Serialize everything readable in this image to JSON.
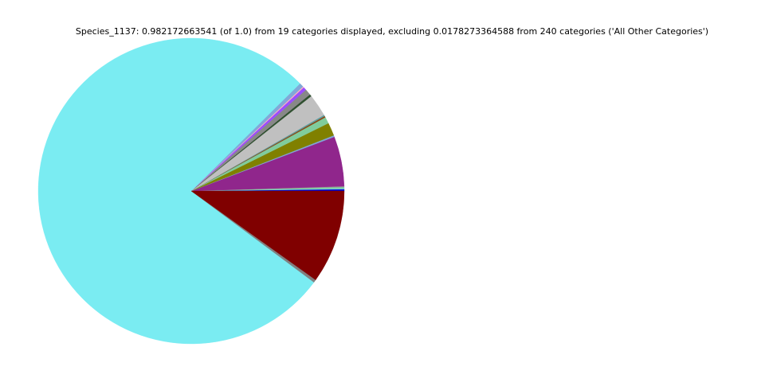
{
  "chart_data": {
    "type": "pie",
    "title": "Species_1137: 0.982172663541 (of 1.0) from 19 categories displayed, excluding 0.0178273364588 from 240 categories ('All Other Categories')",
    "start_angle_deg": 0,
    "direction": "counterclockwise",
    "legend": "none",
    "slices": [
      {
        "value": 0.0019,
        "color": "#0000cd"
      },
      {
        "value": 0.0008,
        "color": "#7fd8e0"
      },
      {
        "value": 0.0014,
        "color": "#80cc9c"
      },
      {
        "value": 0.0008,
        "color": "#999999"
      },
      {
        "value": 0.0518,
        "color": "#90268c"
      },
      {
        "value": 0.0016,
        "color": "#7fa6d8"
      },
      {
        "value": 0.0136,
        "color": "#808000"
      },
      {
        "value": 0.0068,
        "color": "#80cc9c"
      },
      {
        "value": 0.0014,
        "color": "#8b4513"
      },
      {
        "value": 0.0014,
        "color": "#5f9ea0"
      },
      {
        "value": 0.0232,
        "color": "#c0c0c0"
      },
      {
        "value": 0.0022,
        "color": "#2f4f2f"
      },
      {
        "value": 0.0063,
        "color": "#888888"
      },
      {
        "value": 0.0033,
        "color": "#9b4dff"
      },
      {
        "value": 0.0011,
        "color": "#ffb0c0"
      },
      {
        "value": 0.0044,
        "color": "#80a8d8"
      },
      {
        "value": 0.7601,
        "color": "#7aecf2"
      },
      {
        "value": 0.003,
        "color": "#808080"
      },
      {
        "value": 0.0971,
        "color": "#800000"
      }
    ]
  }
}
